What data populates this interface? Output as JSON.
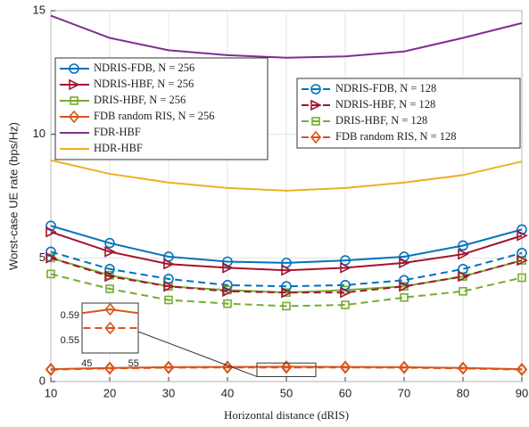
{
  "chart_data": {
    "type": "line",
    "xlabel": "Horizontal distance (dRIS)",
    "ylabel": "Worst-case UE rate (bps/Hz)",
    "x": [
      10,
      20,
      30,
      40,
      50,
      60,
      70,
      80,
      90
    ],
    "xlim": [
      10,
      90
    ],
    "xticks": [
      10,
      20,
      30,
      40,
      50,
      60,
      70,
      80,
      90
    ],
    "ylim": [
      0,
      15
    ],
    "yticks": [
      0,
      5,
      10,
      15
    ],
    "grid": true,
    "series": [
      {
        "name": "NDRIS-FDB, N = 256",
        "color": "#0072BD",
        "marker": "circle",
        "dashed": false,
        "values": [
          6.3,
          5.6,
          5.05,
          4.85,
          4.8,
          4.9,
          5.05,
          5.5,
          6.15
        ]
      },
      {
        "name": "NDRIS-HBF, N = 256",
        "color": "#A2142F",
        "marker": "triangle",
        "dashed": false,
        "values": [
          6.05,
          5.25,
          4.75,
          4.6,
          4.5,
          4.6,
          4.8,
          5.15,
          5.9
        ]
      },
      {
        "name": "DRIS-HBF, N = 256",
        "color": "#77AC30",
        "marker": "square",
        "dashed": false,
        "values": [
          5.0,
          4.3,
          3.85,
          3.7,
          3.6,
          3.7,
          3.85,
          4.25,
          4.9
        ]
      },
      {
        "name": "FDB random RIS, N = 256",
        "color": "#D95319",
        "marker": "diamond",
        "dashed": false,
        "values": [
          0.5,
          0.55,
          0.58,
          0.59,
          0.6,
          0.59,
          0.58,
          0.55,
          0.5
        ]
      },
      {
        "name": "FDR-HBF",
        "color": "#7E2F8E",
        "marker": "none",
        "dashed": false,
        "values": [
          14.8,
          13.9,
          13.4,
          13.2,
          13.1,
          13.15,
          13.35,
          13.9,
          14.5
        ]
      },
      {
        "name": "HDR-HBF",
        "color": "#EDB120",
        "marker": "none",
        "dashed": false,
        "values": [
          8.95,
          8.4,
          8.05,
          7.83,
          7.72,
          7.83,
          8.05,
          8.35,
          8.9
        ]
      },
      {
        "name": "NDRIS-FDB, N = 128",
        "color": "#0072BD",
        "marker": "circle",
        "dashed": true,
        "values": [
          5.25,
          4.55,
          4.15,
          3.9,
          3.85,
          3.9,
          4.1,
          4.55,
          5.2
        ]
      },
      {
        "name": "NDRIS-HBF, N = 128",
        "color": "#A2142F",
        "marker": "triangle",
        "dashed": true,
        "values": [
          5.0,
          4.25,
          3.85,
          3.65,
          3.6,
          3.6,
          3.85,
          4.25,
          4.9
        ]
      },
      {
        "name": "DRIS-HBF, N = 128",
        "color": "#77AC30",
        "marker": "square",
        "dashed": true,
        "values": [
          4.35,
          3.75,
          3.3,
          3.15,
          3.05,
          3.1,
          3.4,
          3.65,
          4.2
        ]
      },
      {
        "name": "FDB random RIS, N = 128",
        "color": "#D95319",
        "marker": "diamond",
        "dashed": true,
        "values": [
          0.48,
          0.53,
          0.56,
          0.57,
          0.57,
          0.57,
          0.56,
          0.53,
          0.48
        ]
      }
    ],
    "inset": {
      "xlim": [
        44,
        56
      ],
      "ylim": [
        0.53,
        0.61
      ],
      "xticks": [
        45,
        55
      ],
      "yticks": [
        0.55,
        0.59
      ]
    }
  }
}
